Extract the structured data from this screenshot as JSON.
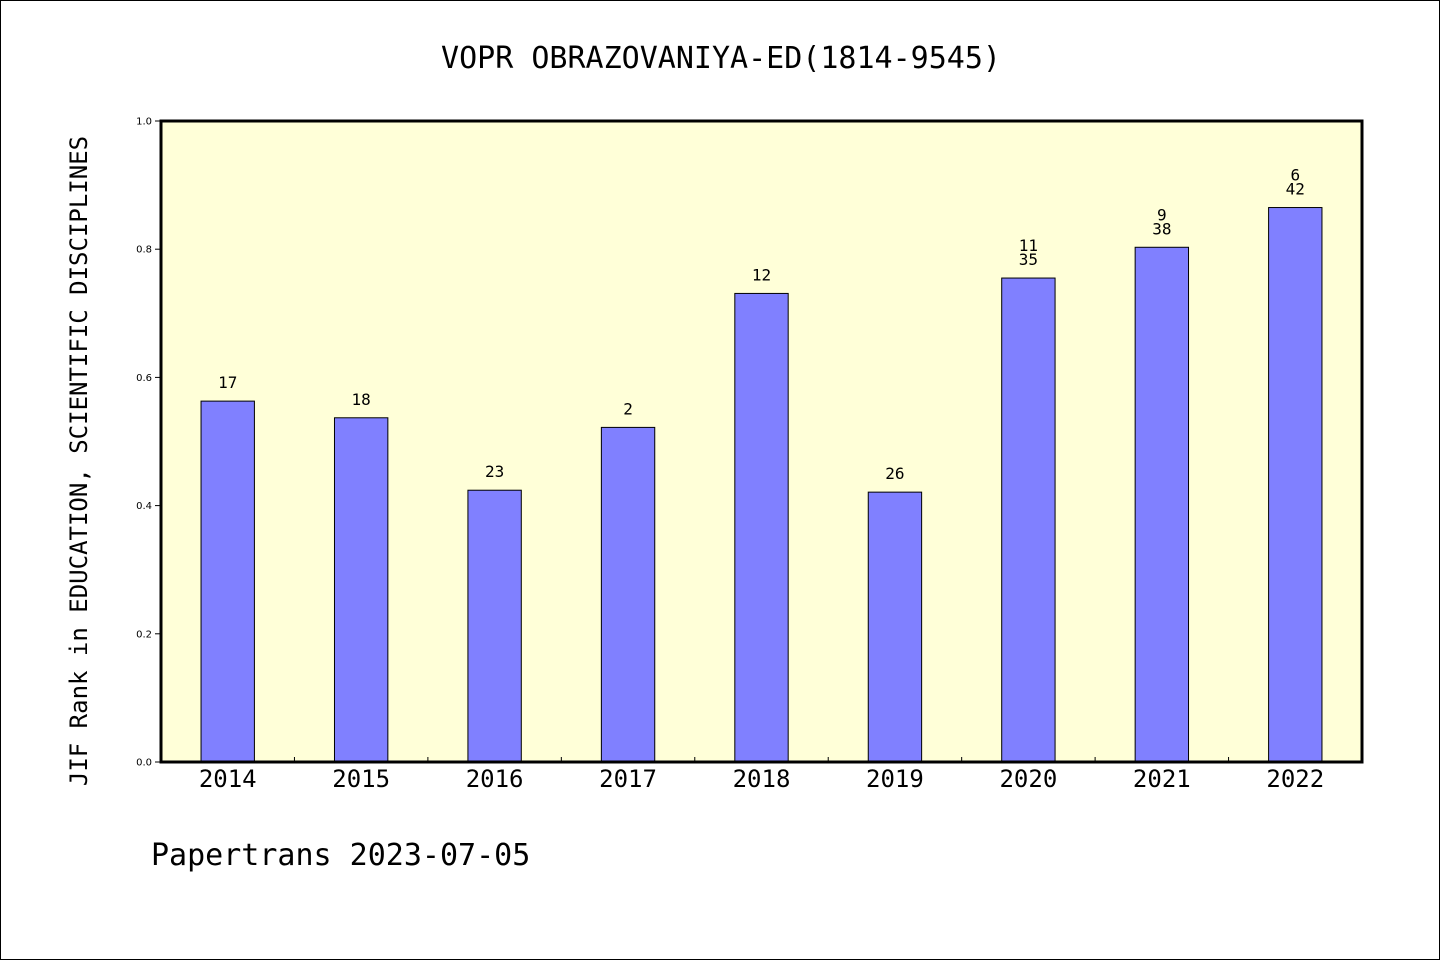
{
  "chart_data": {
    "type": "bar",
    "title": "VOPR OBRAZOVANIYA-ED(1814-9545)",
    "ylabel": "JIF Rank in EDUCATION, SCIENTIFIC DISCIPLINES",
    "xlabel": "",
    "categories": [
      "2014",
      "2015",
      "2016",
      "2017",
      "2018",
      "2019",
      "2020",
      "2021",
      "2022"
    ],
    "values": [
      0.563,
      0.537,
      0.424,
      0.522,
      0.731,
      0.421,
      0.755,
      0.803,
      0.865
    ],
    "bar_labels": [
      [
        "17"
      ],
      [
        "18"
      ],
      [
        "23"
      ],
      [
        "2"
      ],
      [
        "12"
      ],
      [
        "26"
      ],
      [
        "11",
        "35"
      ],
      [
        "9",
        "38"
      ],
      [
        "6",
        "42"
      ]
    ],
    "ylim": [
      0,
      1.0
    ],
    "yticks": [
      "0.0",
      "0.2",
      "0.4",
      "0.6",
      "0.8",
      "1.0"
    ],
    "grid": false,
    "colors": {
      "bar": "#8080ff",
      "plot_background": "#ffffd8",
      "axis": "#000000"
    }
  },
  "footer": "Papertrans 2023-07-05"
}
